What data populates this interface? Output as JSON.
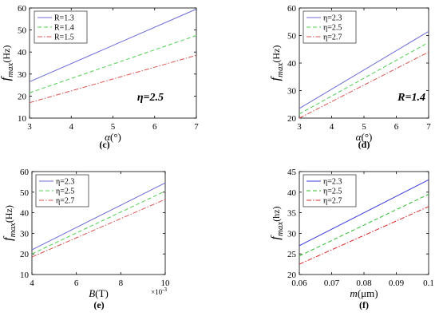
{
  "chart_data": [
    {
      "type": "line",
      "panel": "(c)",
      "xlabel_var": "α",
      "xlabel_unit": "(°)",
      "ylabel_var": "f",
      "ylabel_sub": "max",
      "ylabel_unit": "(Hz)",
      "xlim": [
        3,
        7
      ],
      "ylim": [
        10,
        60
      ],
      "xticks": [
        "3",
        "4",
        "5",
        "6",
        "7"
      ],
      "yticks": [
        "10",
        "20",
        "30",
        "40",
        "50",
        "60"
      ],
      "legend_position": "top-left",
      "annotation": "η=2.5",
      "series": [
        {
          "name": "R=1.3",
          "color": "#6b6bd6",
          "dash": "solid",
          "x": [
            3,
            7
          ],
          "y": [
            26.5,
            59.5
          ]
        },
        {
          "name": "R=1.4",
          "color": "#4fd04f",
          "dash": "dashed",
          "x": [
            3,
            7
          ],
          "y": [
            21.5,
            47.5
          ]
        },
        {
          "name": "R=1.5",
          "color": "#d9534f",
          "dash": "dashdot",
          "x": [
            3,
            7
          ],
          "y": [
            17.0,
            38.5
          ]
        }
      ]
    },
    {
      "type": "line",
      "panel": "(d)",
      "xlabel_var": "α",
      "xlabel_unit": "(°)",
      "ylabel_var": "f",
      "ylabel_sub": "max",
      "ylabel_unit": "(Hz)",
      "xlim": [
        3,
        7
      ],
      "ylim": [
        20,
        60
      ],
      "xticks": [
        "3",
        "4",
        "5",
        "6",
        "7"
      ],
      "yticks": [
        "20",
        "30",
        "40",
        "50",
        "60"
      ],
      "legend_position": "top-left",
      "annotation": "R=1.4",
      "series": [
        {
          "name": "η=2.3",
          "color": "#6b6bd6",
          "dash": "solid",
          "x": [
            3,
            7
          ],
          "y": [
            23.5,
            51.5
          ]
        },
        {
          "name": "η=2.5",
          "color": "#4fd04f",
          "dash": "dashed",
          "x": [
            3,
            7
          ],
          "y": [
            21.5,
            47.5
          ]
        },
        {
          "name": "η=2.7",
          "color": "#d9534f",
          "dash": "dashdot",
          "x": [
            3,
            7
          ],
          "y": [
            20.0,
            44.0
          ]
        }
      ]
    },
    {
      "type": "line",
      "panel": "(e)",
      "xlabel_var": "B",
      "xlabel_unit": "(T)",
      "ylabel_var": "f",
      "ylabel_sub": "max",
      "ylabel_unit": "(Hz)",
      "xlim": [
        4,
        10
      ],
      "ylim": [
        10,
        60
      ],
      "xticks": [
        "4",
        "6",
        "8",
        "10"
      ],
      "yticks": [
        "10",
        "20",
        "30",
        "40",
        "50",
        "60"
      ],
      "x_multiplier": "×10",
      "x_multiplier_exp": "-3",
      "legend_position": "top-left",
      "annotation": "",
      "series": [
        {
          "name": "η=2.3",
          "color": "#6b6bd6",
          "dash": "solid",
          "x": [
            4,
            10
          ],
          "y": [
            22.0,
            54.5
          ]
        },
        {
          "name": "η=2.5",
          "color": "#4fd04f",
          "dash": "dashed",
          "x": [
            4,
            10
          ],
          "y": [
            20.0,
            50.5
          ]
        },
        {
          "name": "η=2.7",
          "color": "#d9534f",
          "dash": "dashdot",
          "x": [
            4,
            10
          ],
          "y": [
            18.5,
            46.5
          ]
        }
      ]
    },
    {
      "type": "line",
      "panel": "(f)",
      "xlabel_var": "m",
      "xlabel_unit": "(μm)",
      "ylabel_var": "f",
      "ylabel_sub": "max",
      "ylabel_unit": "(hz)",
      "xlim": [
        0.06,
        0.1
      ],
      "ylim": [
        20,
        45
      ],
      "xticks": [
        "0.06",
        "0.07",
        "0.08",
        "0.09",
        "0.1"
      ],
      "yticks": [
        "20",
        "25",
        "30",
        "35",
        "40",
        "45"
      ],
      "legend_position": "top-left",
      "annotation": "",
      "series": [
        {
          "name": "η=2.3",
          "color": "#3b3bdb",
          "dash": "solid",
          "x": [
            0.06,
            0.1
          ],
          "y": [
            27.0,
            43.0
          ]
        },
        {
          "name": "η=2.5",
          "color": "#2fbf2f",
          "dash": "dashed",
          "x": [
            0.06,
            0.1
          ],
          "y": [
            24.5,
            39.5
          ]
        },
        {
          "name": "η=2.7",
          "color": "#d62828",
          "dash": "dashdot",
          "x": [
            0.06,
            0.1
          ],
          "y": [
            22.5,
            36.5
          ]
        }
      ]
    }
  ]
}
